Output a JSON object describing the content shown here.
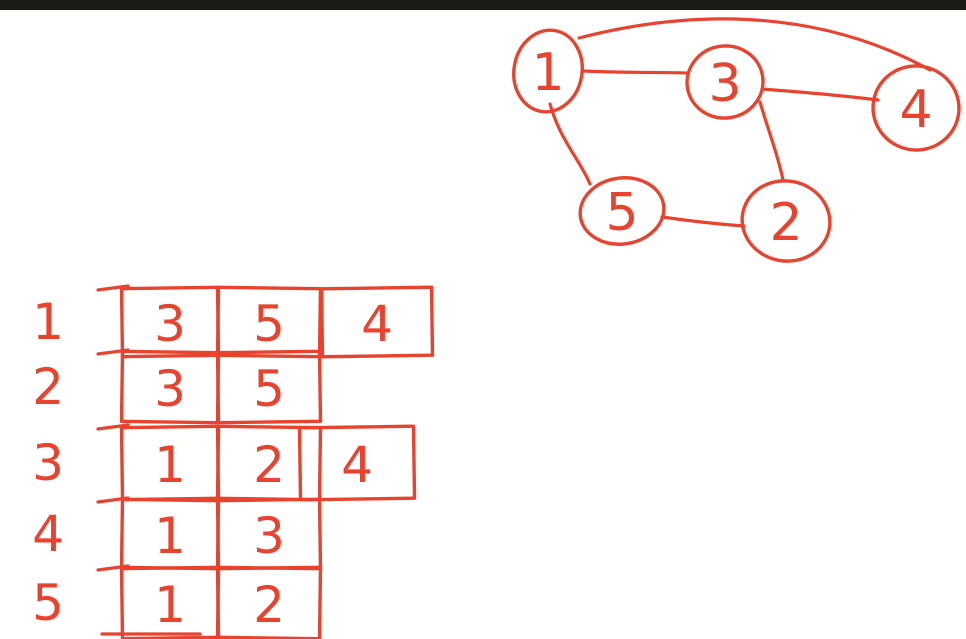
{
  "ink_color": "#e8432e",
  "bar_color": "#1b1b16",
  "graph": {
    "nodes": [
      {
        "id": "n1",
        "label": "1"
      },
      {
        "id": "n3",
        "label": "3"
      },
      {
        "id": "n4",
        "label": "4"
      },
      {
        "id": "n5",
        "label": "5"
      },
      {
        "id": "n2",
        "label": "2"
      }
    ],
    "edges": [
      {
        "from": "n1",
        "to": "n3"
      },
      {
        "from": "n1",
        "to": "n4"
      },
      {
        "from": "n3",
        "to": "n4"
      },
      {
        "from": "n3",
        "to": "n2"
      },
      {
        "from": "n1",
        "to": "n5"
      },
      {
        "from": "n5",
        "to": "n2"
      }
    ]
  },
  "adjacency_list": [
    {
      "vertex": "1",
      "neighbors": [
        "3",
        "5",
        "4"
      ]
    },
    {
      "vertex": "2",
      "neighbors": [
        "3",
        "5"
      ]
    },
    {
      "vertex": "3",
      "neighbors": [
        "1",
        "2",
        "4"
      ]
    },
    {
      "vertex": "4",
      "neighbors": [
        "1",
        "3"
      ]
    },
    {
      "vertex": "5",
      "neighbors": [
        "1",
        "2"
      ]
    }
  ]
}
